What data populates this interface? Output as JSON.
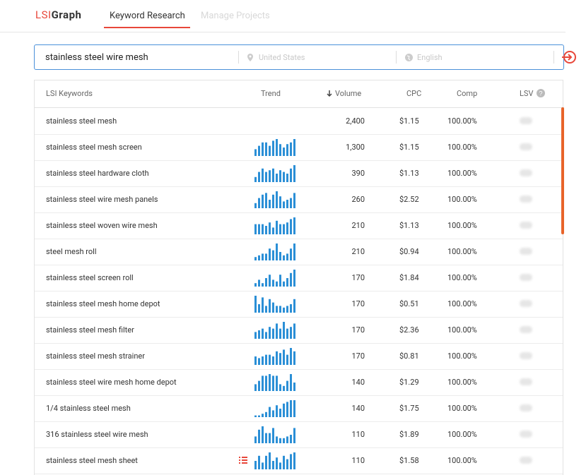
{
  "header": {
    "logo_left": "LSI",
    "logo_right": "Graph",
    "tabs": [
      "Keyword Research",
      "Manage Projects"
    ]
  },
  "search": {
    "query": "stainless steel wire mesh",
    "location": "United States",
    "language": "English"
  },
  "table": {
    "columns": [
      "LSI Keywords",
      "Trend",
      "Volume",
      "CPC",
      "Comp",
      "LSV"
    ],
    "rows": [
      {
        "keyword": "stainless steel mesh",
        "volume": "2,400",
        "cpc": "$1.15",
        "comp": "100.00%"
      },
      {
        "keyword": "stainless steel mesh screen",
        "trend": [
          4,
          6,
          8,
          8,
          6,
          9,
          10,
          7,
          5,
          7,
          8,
          10
        ],
        "volume": "1,300",
        "cpc": "$1.15",
        "comp": "100.00%"
      },
      {
        "keyword": "stainless steel hardware cloth",
        "trend": [
          3,
          6,
          8,
          6,
          7,
          8,
          5,
          7,
          6,
          5,
          8,
          10
        ],
        "volume": "390",
        "cpc": "$1.13",
        "comp": "100.00%"
      },
      {
        "keyword": "stainless steel wire mesh panels",
        "trend": [
          3,
          6,
          8,
          9,
          5,
          8,
          10,
          7,
          4,
          5,
          6,
          9
        ],
        "volume": "260",
        "cpc": "$2.52",
        "comp": "100.00%"
      },
      {
        "keyword": "stainless steel woven wire mesh",
        "trend": [
          6,
          6,
          6,
          5,
          7,
          4,
          8,
          6,
          6,
          7,
          9,
          10
        ],
        "volume": "210",
        "cpc": "$1.13",
        "comp": "100.00%"
      },
      {
        "keyword": "steel mesh roll",
        "trend": [
          2,
          3,
          4,
          4,
          7,
          6,
          10,
          5,
          3,
          4,
          7,
          10
        ],
        "volume": "210",
        "cpc": "$0.94",
        "comp": "100.00%"
      },
      {
        "keyword": "stainless steel screen roll",
        "trend": [
          2,
          4,
          2,
          5,
          7,
          4,
          3,
          7,
          3,
          5,
          8,
          10
        ],
        "volume": "170",
        "cpc": "$1.84",
        "comp": "100.00%"
      },
      {
        "keyword": "stainless steel mesh home depot",
        "trend": [
          10,
          5,
          9,
          4,
          8,
          6,
          4,
          4,
          3,
          4,
          5,
          8
        ],
        "volume": "170",
        "cpc": "$0.51",
        "comp": "100.00%"
      },
      {
        "keyword": "stainless steel mesh filter",
        "trend": [
          4,
          5,
          6,
          4,
          7,
          6,
          9,
          6,
          10,
          6,
          7,
          9
        ],
        "volume": "170",
        "cpc": "$2.36",
        "comp": "100.00%"
      },
      {
        "keyword": "stainless steel mesh strainer",
        "trend": [
          5,
          4,
          5,
          6,
          6,
          5,
          8,
          7,
          9,
          6,
          10,
          8
        ],
        "volume": "170",
        "cpc": "$0.81",
        "comp": "100.00%"
      },
      {
        "keyword": "stainless steel wire mesh home depot",
        "trend": [
          4,
          6,
          9,
          9,
          10,
          9,
          9,
          4,
          3,
          6,
          10,
          5
        ],
        "volume": "140",
        "cpc": "$1.29",
        "comp": "100.00%"
      },
      {
        "keyword": "1/4 stainless steel mesh",
        "trend": [
          1,
          1,
          2,
          3,
          6,
          4,
          7,
          5,
          8,
          9,
          10,
          10
        ],
        "volume": "140",
        "cpc": "$1.75",
        "comp": "100.00%"
      },
      {
        "keyword": "316 stainless steel wire mesh",
        "trend": [
          4,
          8,
          10,
          6,
          6,
          9,
          4,
          3,
          3,
          4,
          5,
          9
        ],
        "volume": "110",
        "cpc": "$1.89",
        "comp": "100.00%"
      },
      {
        "keyword": "stainless steel mesh sheet",
        "trend": [
          5,
          8,
          4,
          8,
          10,
          5,
          7,
          4,
          8,
          6,
          9,
          10
        ],
        "volume": "110",
        "cpc": "$1.58",
        "comp": "100.00%"
      }
    ]
  }
}
